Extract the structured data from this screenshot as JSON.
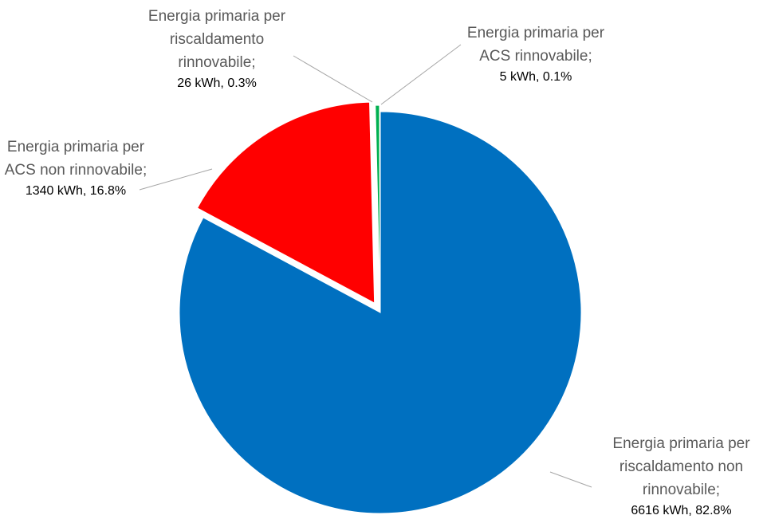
{
  "chart_data": {
    "type": "pie",
    "categories": [
      "Energia primaria per riscaldamento non rinnovabile;",
      "Energia primaria per ACS non rinnovabile;",
      "Energia primaria per riscaldamento rinnovabile;",
      "Energia primaria per ACS rinnovabile;"
    ],
    "values": [
      6616,
      1340,
      26,
      5
    ],
    "value_labels": [
      "6616 kWh, 82.8%",
      "1340 kWh, 16.8%",
      "26 kWh, 0.3%",
      "5 kWh, 0.1%"
    ],
    "colors": [
      "#0070c0",
      "#ff0000",
      "#00b050",
      "#1f3864"
    ]
  }
}
